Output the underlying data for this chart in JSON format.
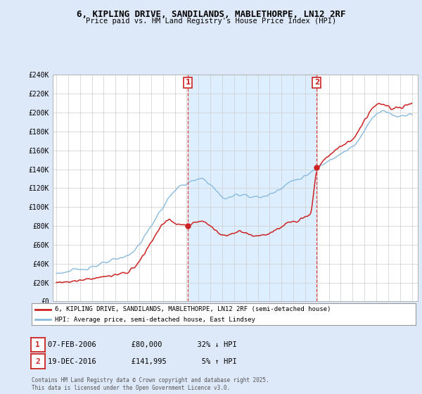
{
  "title": "6, KIPLING DRIVE, SANDILANDS, MABLETHORPE, LN12 2RF",
  "subtitle": "Price paid vs. HM Land Registry's House Price Index (HPI)",
  "ylim": [
    0,
    240000
  ],
  "yticks": [
    0,
    20000,
    40000,
    60000,
    80000,
    100000,
    120000,
    140000,
    160000,
    180000,
    200000,
    220000,
    240000
  ],
  "ytick_labels": [
    "£0",
    "£20K",
    "£40K",
    "£60K",
    "£80K",
    "£100K",
    "£120K",
    "£140K",
    "£160K",
    "£180K",
    "£200K",
    "£220K",
    "£240K"
  ],
  "background_color": "#dde8f8",
  "plot_bg_color": "#ffffff",
  "shaded_bg_color": "#ddeeff",
  "hpi_color": "#88bbdd",
  "price_color": "#cc2222",
  "vline_color": "#dd4444",
  "marker1_date": 2006.1,
  "marker2_date": 2016.97,
  "marker1_price": 80000,
  "marker2_price": 141995,
  "legend_label_price": "6, KIPLING DRIVE, SANDILANDS, MABLETHORPE, LN12 2RF (semi-detached house)",
  "legend_label_hpi": "HPI: Average price, semi-detached house, East Lindsey",
  "annotation1_text": "07-FEB-2006        £80,000        32% ↓ HPI",
  "annotation2_text": "19-DEC-2016        £141,995        5% ↑ HPI",
  "footer": "Contains HM Land Registry data © Crown copyright and database right 2025.\nThis data is licensed under the Open Government Licence v3.0.",
  "xmin": 1994.7,
  "xmax": 2025.5
}
